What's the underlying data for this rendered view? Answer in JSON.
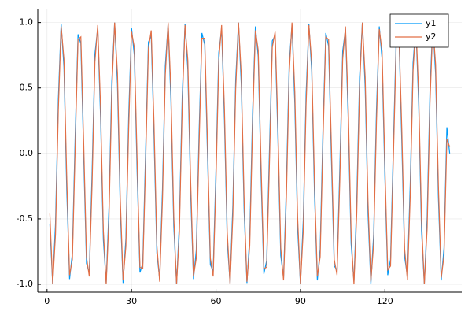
{
  "chart_data": {
    "type": "line",
    "x": [
      1,
      2,
      3,
      4,
      5,
      6,
      7,
      8,
      9,
      10,
      11,
      12,
      13,
      14,
      15,
      16,
      17,
      18,
      19,
      20,
      21,
      22,
      23,
      24,
      25,
      26,
      27,
      28,
      29,
      30,
      31,
      32,
      33,
      34,
      35,
      36,
      37,
      38,
      39,
      40,
      41,
      42,
      43,
      44,
      45,
      46,
      47,
      48,
      49,
      50,
      51,
      52,
      53,
      54,
      55,
      56,
      57,
      58,
      59,
      60,
      61,
      62,
      63,
      64,
      65,
      66,
      67,
      68,
      69,
      70,
      71,
      72,
      73,
      74,
      75,
      76,
      77,
      78,
      79,
      80,
      81,
      82,
      83,
      84,
      85,
      86,
      87,
      88,
      89,
      90,
      91,
      92,
      93,
      94,
      95,
      96,
      97,
      98,
      99,
      100,
      101,
      102,
      103,
      104,
      105,
      106,
      107,
      108,
      109,
      110,
      111,
      112,
      113,
      114,
      115,
      116,
      117,
      118,
      119,
      120,
      121,
      122,
      123,
      124,
      125,
      126,
      127,
      128,
      129,
      130,
      131,
      132,
      133,
      134,
      135,
      136,
      137,
      138,
      139,
      140,
      141,
      142,
      143
    ],
    "series": [
      {
        "name": "y1",
        "color": "#009af9",
        "values": [
          -0.54,
          -1.0,
          -0.54,
          0.41,
          0.99,
          0.66,
          -0.28,
          -0.96,
          -0.76,
          0.14,
          0.91,
          0.84,
          0.0,
          -0.84,
          -0.91,
          -0.14,
          0.76,
          0.96,
          0.28,
          -0.66,
          -0.99,
          -0.41,
          0.55,
          1.0,
          0.53,
          -0.42,
          -0.99,
          -0.65,
          0.29,
          0.96,
          0.75,
          -0.15,
          -0.91,
          -0.84,
          0.01,
          0.85,
          0.9,
          0.13,
          -0.76,
          -0.96,
          -0.27,
          0.67,
          0.99,
          0.4,
          -0.55,
          -1.0,
          -0.53,
          0.43,
          0.99,
          0.64,
          -0.3,
          -0.96,
          -0.74,
          0.16,
          0.92,
          0.83,
          -0.02,
          -0.85,
          -0.9,
          -0.12,
          0.77,
          0.95,
          0.26,
          -0.67,
          -0.99,
          -0.39,
          0.56,
          1.0,
          0.52,
          -0.44,
          -0.99,
          -0.63,
          0.31,
          0.97,
          0.74,
          -0.17,
          -0.92,
          -0.82,
          0.03,
          0.86,
          0.9,
          0.11,
          -0.78,
          -0.95,
          -0.25,
          0.68,
          0.98,
          0.38,
          -0.57,
          -1.0,
          -0.51,
          0.45,
          0.99,
          0.63,
          -0.32,
          -0.97,
          -0.73,
          0.18,
          0.92,
          0.82,
          -0.04,
          -0.86,
          -0.89,
          -0.1,
          0.78,
          0.95,
          0.24,
          -0.69,
          -0.98,
          -0.37,
          0.58,
          1.0,
          0.5,
          -0.46,
          -1.0,
          -0.62,
          0.33,
          0.97,
          0.72,
          -0.19,
          -0.93,
          -0.81,
          0.05,
          0.87,
          0.89,
          0.09,
          -0.79,
          -0.94,
          -0.23,
          0.69,
          0.98,
          0.37,
          -0.59,
          -1.0,
          -0.49,
          0.47,
          1.0,
          0.61,
          -0.34,
          -0.97,
          -0.72,
          0.2,
          0.0
        ]
      },
      {
        "name": "y2",
        "color": "#e26f46",
        "values": [
          -0.46,
          -1.0,
          -0.62,
          0.33,
          0.97,
          0.72,
          -0.19,
          -0.93,
          -0.81,
          0.05,
          0.87,
          0.89,
          0.09,
          -0.79,
          -0.94,
          -0.23,
          0.7,
          0.98,
          0.36,
          -0.59,
          -1.0,
          -0.49,
          0.47,
          1.0,
          0.61,
          -0.34,
          -0.97,
          -0.71,
          0.2,
          0.93,
          0.81,
          -0.06,
          -0.87,
          -0.88,
          -0.08,
          0.8,
          0.94,
          0.22,
          -0.7,
          -0.98,
          -0.35,
          0.6,
          1.0,
          0.48,
          -0.48,
          -1.0,
          -0.6,
          0.35,
          0.98,
          0.71,
          -0.21,
          -0.94,
          -0.8,
          0.07,
          0.88,
          0.88,
          0.07,
          -0.8,
          -0.94,
          -0.21,
          0.71,
          0.98,
          0.34,
          -0.6,
          -1.0,
          -0.47,
          0.49,
          1.0,
          0.59,
          -0.36,
          -0.98,
          -0.7,
          0.22,
          0.94,
          0.79,
          -0.08,
          -0.88,
          -0.87,
          -0.06,
          0.81,
          0.93,
          0.2,
          -0.72,
          -0.97,
          -0.34,
          0.61,
          1.0,
          0.47,
          -0.49,
          -1.0,
          -0.59,
          0.37,
          0.98,
          0.69,
          -0.23,
          -0.94,
          -0.79,
          0.09,
          0.89,
          0.87,
          0.05,
          -0.81,
          -0.93,
          -0.19,
          0.72,
          0.97,
          0.33,
          -0.62,
          -1.0,
          -0.46,
          0.5,
          1.0,
          0.58,
          -0.37,
          -0.98,
          -0.69,
          0.24,
          0.95,
          0.78,
          -0.1,
          -0.89,
          -0.86,
          -0.04,
          0.82,
          0.92,
          0.18,
          -0.73,
          -0.97,
          -0.32,
          0.63,
          0.99,
          0.45,
          -0.51,
          -1.0,
          -0.57,
          0.38,
          0.98,
          0.68,
          -0.25,
          -0.95,
          -0.78,
          0.11,
          0.05
        ]
      }
    ],
    "xlim": [
      -3.3,
      147.3
    ],
    "xticks": [
      0,
      30,
      60,
      90,
      120
    ],
    "ylim": [
      -1.06,
      1.1
    ],
    "yticks": [
      {
        "value": -1,
        "label": "-1.0"
      },
      -0.5,
      {
        "value": 0,
        "label": "0.0"
      },
      0.5,
      {
        "value": 1,
        "label": "1.0"
      }
    ],
    "grid": true,
    "legend": "top-right"
  }
}
